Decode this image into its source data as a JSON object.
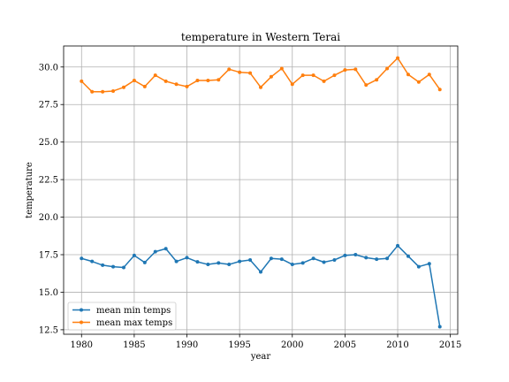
{
  "chart_data": {
    "type": "line",
    "title": "temperature in Western Terai",
    "xlabel": "year",
    "ylabel": "temperature",
    "xlim": [
      1978.3,
      2015.7
    ],
    "ylim": [
      12.2,
      31.4
    ],
    "xticks": [
      1980,
      1985,
      1990,
      1995,
      2000,
      2005,
      2010,
      2015
    ],
    "yticks": [
      12.5,
      15.0,
      17.5,
      20.0,
      22.5,
      25.0,
      27.5,
      30.0
    ],
    "ytick_labels": [
      "12.5",
      "15.0",
      "17.5",
      "20.0",
      "22.5",
      "25.0",
      "27.5",
      "30.0"
    ],
    "grid": true,
    "legend_position": "lower left",
    "x": [
      1980,
      1981,
      1982,
      1983,
      1984,
      1985,
      1986,
      1987,
      1988,
      1989,
      1990,
      1991,
      1992,
      1993,
      1994,
      1995,
      1996,
      1997,
      1998,
      1999,
      2000,
      2001,
      2002,
      2003,
      2004,
      2005,
      2006,
      2007,
      2008,
      2009,
      2010,
      2011,
      2012,
      2013,
      2014
    ],
    "series": [
      {
        "name": "mean min temps",
        "color": "#1f77b4",
        "values": [
          17.25,
          17.05,
          16.8,
          16.7,
          16.65,
          17.45,
          16.98,
          17.7,
          17.9,
          17.05,
          17.3,
          17.02,
          16.85,
          16.95,
          16.85,
          17.05,
          17.15,
          16.35,
          17.25,
          17.2,
          16.85,
          16.95,
          17.25,
          17.0,
          17.15,
          17.45,
          17.5,
          17.3,
          17.2,
          17.25,
          18.1,
          17.4,
          16.7,
          16.9,
          12.7
        ]
      },
      {
        "name": "mean max temps",
        "color": "#ff7f0e",
        "values": [
          29.05,
          28.35,
          28.35,
          28.4,
          28.65,
          29.1,
          28.7,
          29.45,
          29.05,
          28.85,
          28.7,
          29.1,
          29.1,
          29.15,
          29.85,
          29.65,
          29.6,
          28.65,
          29.35,
          29.9,
          28.85,
          29.45,
          29.45,
          29.05,
          29.45,
          29.8,
          29.85,
          28.8,
          29.15,
          29.9,
          30.6,
          29.5,
          29.0,
          29.5,
          28.5
        ]
      }
    ]
  }
}
